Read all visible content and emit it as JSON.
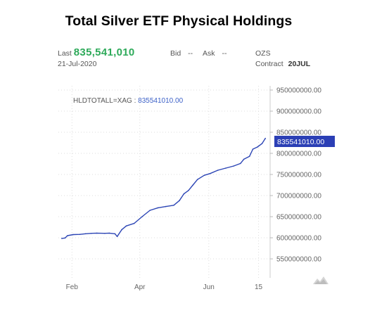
{
  "header": {
    "title": "Total Silver ETF Physical Holdings"
  },
  "quote": {
    "last_label": "Last",
    "last_value": "835,541,010",
    "date": "21-Jul-2020",
    "bid_label": "Bid",
    "bid_value": "--",
    "ask_label": "Ask",
    "ask_value": "--",
    "symbol": "OZS",
    "contract_label": "Contract",
    "contract_value": "20JUL"
  },
  "chart_data": {
    "type": "line",
    "title": "Total Silver ETF Physical Holdings",
    "legend_label": "HLDTOTALL=XAG : ",
    "legend_value": "835541010.00",
    "last_value_label": "835541010.00",
    "xlabel": "",
    "ylabel": "",
    "xlim": [
      "2020-01-20",
      "2020-07-24"
    ],
    "ylim": [
      505000000,
      960000000
    ],
    "grid": true,
    "x_ticks": [
      {
        "label": "Feb",
        "x": "2020-02-01"
      },
      {
        "label": "Apr",
        "x": "2020-04-01"
      },
      {
        "label": "Jun",
        "x": "2020-06-01"
      },
      {
        "label": "15",
        "x": "2020-07-15"
      }
    ],
    "y_ticks": [
      {
        "label": "950000000.00",
        "y": 950000000
      },
      {
        "label": "900000000.00",
        "y": 900000000
      },
      {
        "label": "850000000.00",
        "y": 850000000
      },
      {
        "label": "800000000.00",
        "y": 800000000
      },
      {
        "label": "750000000.00",
        "y": 750000000
      },
      {
        "label": "700000000.00",
        "y": 700000000
      },
      {
        "label": "650000000.00",
        "y": 650000000
      },
      {
        "label": "600000000.00",
        "y": 600000000
      },
      {
        "label": "550000000.00",
        "y": 550000000
      }
    ],
    "series": [
      {
        "name": "HLDTOTALL=XAG",
        "color": "#2c45b5",
        "points": [
          [
            "2020-01-23",
            598500000
          ],
          [
            "2020-01-26",
            599500000
          ],
          [
            "2020-01-28",
            605000000
          ],
          [
            "2020-02-02",
            607500000
          ],
          [
            "2020-02-08",
            608000000
          ],
          [
            "2020-02-13",
            609500000
          ],
          [
            "2020-02-18",
            610500000
          ],
          [
            "2020-02-23",
            611000000
          ],
          [
            "2020-03-01",
            610500000
          ],
          [
            "2020-03-05",
            611000000
          ],
          [
            "2020-03-10",
            609500000
          ],
          [
            "2020-03-12",
            603000000
          ],
          [
            "2020-03-16",
            619000000
          ],
          [
            "2020-03-20",
            628000000
          ],
          [
            "2020-03-27",
            634000000
          ],
          [
            "2020-04-03",
            650000000
          ],
          [
            "2020-04-10",
            665000000
          ],
          [
            "2020-04-17",
            671000000
          ],
          [
            "2020-04-24",
            674000000
          ],
          [
            "2020-05-01",
            677000000
          ],
          [
            "2020-05-06",
            688000000
          ],
          [
            "2020-05-10",
            704000000
          ],
          [
            "2020-05-14",
            712000000
          ],
          [
            "2020-05-18",
            725000000
          ],
          [
            "2020-05-22",
            738000000
          ],
          [
            "2020-05-28",
            748000000
          ],
          [
            "2020-06-02",
            752000000
          ],
          [
            "2020-06-09",
            760000000
          ],
          [
            "2020-06-16",
            765000000
          ],
          [
            "2020-06-23",
            770000000
          ],
          [
            "2020-06-29",
            776000000
          ],
          [
            "2020-07-02",
            786000000
          ],
          [
            "2020-07-07",
            793000000
          ],
          [
            "2020-07-10",
            810000000
          ],
          [
            "2020-07-14",
            815000000
          ],
          [
            "2020-07-18",
            823000000
          ],
          [
            "2020-07-21",
            835541010
          ]
        ]
      }
    ],
    "colors": {
      "line": "#2c45b5",
      "legend_value": "#3a5fc7",
      "label_bg": "#2b3fb5",
      "grid": "#dddddd",
      "last_value": "#2eaa5a"
    }
  }
}
